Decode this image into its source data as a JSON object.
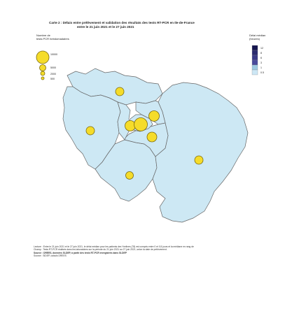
{
  "title": {
    "main": "Carte 2 : Délais entre prélèvement et validation des résultats des tests RT-PCR en Ile-de-France",
    "sub": "entre le 21 juin 2021 et le 27 juin 2021"
  },
  "legend_size": {
    "title_lines": [
      "Nombre de",
      "tests PCR hebdomadaires"
    ],
    "labels": [
      "10000",
      "5000",
      "2000",
      "500"
    ]
  },
  "legend_color": {
    "title_lines": [
      "Délai médian",
      "(heures)"
    ],
    "labels": [
      "12",
      "8",
      "6",
      "3",
      "1",
      "0.5"
    ],
    "colors": [
      "#16164f",
      "#2b2b6e",
      "#3a3a86",
      "#4a4a9c",
      "#9ec9e2",
      "#cce7f5"
    ]
  },
  "map": {
    "fill": "#cde8f4",
    "stroke": "#666666",
    "marker_color": "#f5dc2a",
    "marker_stroke": "#7a6a10"
  },
  "source": {
    "line1": "Lecture : Entre le 21 juin 2021 et le 27 juin 2021, le délai médian pour les patients des Yvelines (78) est compris entre 0 et 0,5 jours et la médiane en rang de",
    "line2": "Champ : Tests RT-PCR réalisés dans les laboratoires sur la période du 21 juin 2021 au 27 juin 2021, selon la date de prélèvement.",
    "line3": "Source : DREES, données SI-DEP, à partir des tests RT-PCR enregistrés dans SI-DEP",
    "line4": "Source : SIDEP, calculs DREES"
  }
}
